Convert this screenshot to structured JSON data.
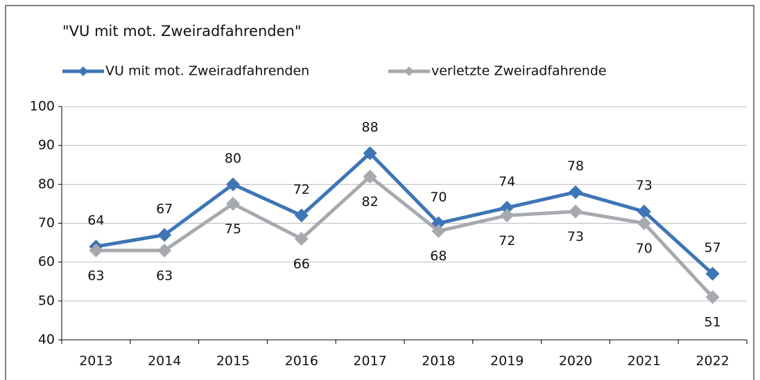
{
  "chart_data": {
    "type": "line",
    "title": "\"VU mit mot. Zweiradfahrenden\"",
    "categories": [
      "2013",
      "2014",
      "2015",
      "2016",
      "2017",
      "2018",
      "2019",
      "2020",
      "2021",
      "2022"
    ],
    "series": [
      {
        "name": "VU mit mot. Zweiradfahrenden",
        "color": "#3d75b5",
        "values": [
          64,
          67,
          80,
          72,
          88,
          70,
          74,
          78,
          73,
          57
        ]
      },
      {
        "name": "verletzte Zweiradfahrende",
        "color": "#a6a9ae",
        "values": [
          63,
          63,
          75,
          66,
          82,
          68,
          72,
          73,
          70,
          51
        ]
      }
    ],
    "ylim": [
      40,
      100
    ],
    "yticks": [
      40,
      50,
      60,
      70,
      80,
      90,
      100
    ],
    "grid": true
  }
}
